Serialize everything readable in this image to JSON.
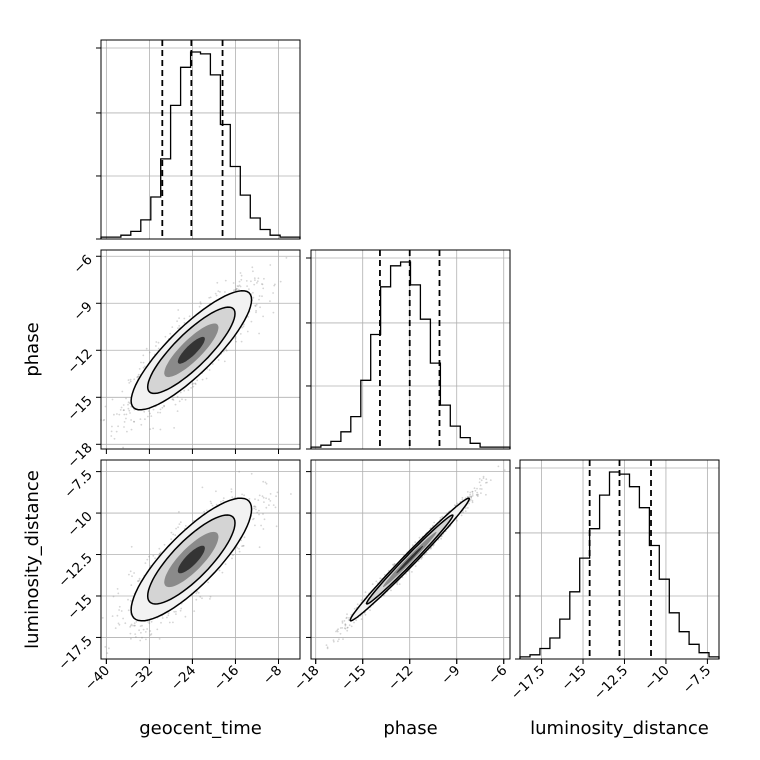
{
  "chart_data": {
    "type": "corner",
    "parameters": [
      {
        "name": "geocent_time",
        "label": "geocent_time",
        "range": [
          -41,
          -4
        ],
        "ticks": [
          -40,
          -32,
          -24,
          -16,
          -8
        ],
        "quantiles": [
          -29.6,
          -24.2,
          -18.4
        ]
      },
      {
        "name": "phase",
        "label": "phase",
        "range": [
          -18.3,
          -5.6
        ],
        "ticks": [
          -18,
          -15,
          -12,
          -9,
          -6
        ],
        "quantiles": [
          -13.9,
          -12.0,
          -10.1
        ]
      },
      {
        "name": "luminosity_distance",
        "label": "luminosity_distance",
        "range": [
          -18.8,
          -6.8
        ],
        "ticks": [
          -17.5,
          -15.0,
          -12.5,
          -10.0,
          -7.5
        ],
        "quantiles": [
          -14.6,
          -12.8,
          -10.9
        ]
      }
    ],
    "histograms": [
      {
        "parameter": "geocent_time",
        "counts": [
          1,
          1,
          2,
          4,
          10,
          22,
          42,
          70,
          90,
          98,
          97,
          86,
          60,
          38,
          23,
          11,
          5,
          2,
          1,
          1
        ]
      },
      {
        "parameter": "phase",
        "counts": [
          1,
          2,
          4,
          9,
          17,
          36,
          60,
          85,
          96,
          98,
          86,
          68,
          45,
          23,
          12,
          6,
          3,
          1,
          1,
          1
        ]
      },
      {
        "parameter": "luminosity_distance",
        "counts": [
          1,
          2,
          5,
          10,
          19,
          32,
          48,
          62,
          78,
          89,
          88,
          82,
          72,
          54,
          38,
          22,
          13,
          7,
          3,
          1
        ]
      }
    ],
    "joint": [
      {
        "x": "geocent_time",
        "y": "phase",
        "correlation": 0.85
      },
      {
        "x": "geocent_time",
        "y": "luminosity_distance",
        "correlation": 0.82
      },
      {
        "x": "phase",
        "y": "luminosity_distance",
        "correlation": 0.99
      }
    ],
    "grid": true,
    "colors": {
      "line": "#000000",
      "points": "#888888",
      "grid": "#b0b0b0"
    }
  }
}
